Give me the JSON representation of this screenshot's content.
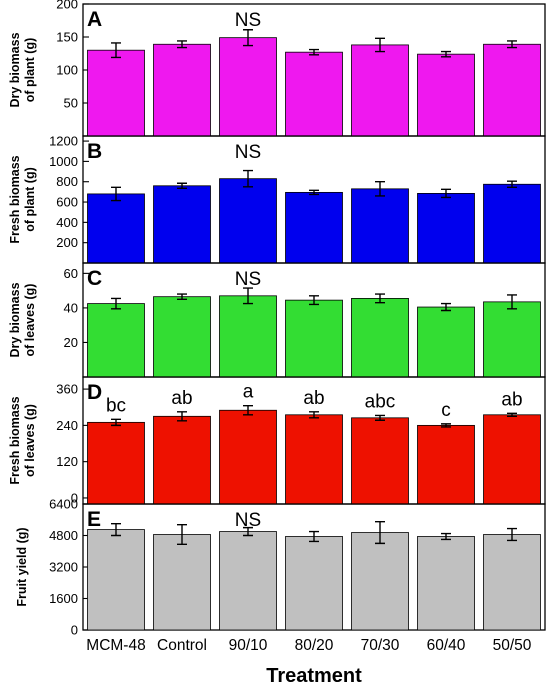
{
  "chart_data": [
    {
      "type": "bar",
      "panel": "A",
      "ylabel": [
        "Dry biomass",
        "of plant (g)"
      ],
      "annotation": "NS",
      "ylim": [
        0,
        200
      ],
      "yticks": [
        50,
        100,
        150,
        200
      ],
      "color": "#ef18ef",
      "categories": [
        "MCM-48",
        "Control",
        "90/10",
        "80/20",
        "70/30",
        "60/40",
        "50/50"
      ],
      "values": [
        130,
        139,
        149,
        127,
        138,
        124,
        139
      ],
      "errors": [
        11,
        5,
        12,
        4,
        10,
        4,
        5
      ]
    },
    {
      "type": "bar",
      "panel": "B",
      "ylabel": [
        "Fresh biomass",
        "of plant (g)"
      ],
      "annotation": "NS",
      "ylim": [
        0,
        1250
      ],
      "yticks": [
        200,
        400,
        600,
        800,
        1000,
        1200
      ],
      "color": "#0000ee",
      "categories": [
        "MCM-48",
        "Control",
        "90/10",
        "80/20",
        "70/30",
        "60/40",
        "50/50"
      ],
      "values": [
        680,
        760,
        830,
        695,
        730,
        685,
        775
      ],
      "errors": [
        65,
        25,
        80,
        20,
        70,
        40,
        30
      ]
    },
    {
      "type": "bar",
      "panel": "C",
      "ylabel": [
        "Dry biomass",
        "of leaves (g)"
      ],
      "annotation": "NS",
      "ylim": [
        0,
        66
      ],
      "yticks": [
        20,
        40,
        60
      ],
      "color": "#33dd33",
      "categories": [
        "MCM-48",
        "Control",
        "90/10",
        "80/20",
        "70/30",
        "60/40",
        "50/50"
      ],
      "values": [
        42.5,
        46.5,
        47,
        44.5,
        45.5,
        40.5,
        43.5
      ],
      "errors": [
        3,
        1.5,
        4.5,
        2.5,
        2.5,
        2,
        4
      ]
    },
    {
      "type": "bar",
      "panel": "D",
      "ylabel": [
        "Fresh biomass",
        "of leaves (g)"
      ],
      "annotation": "",
      "ylim": [
        -20,
        400
      ],
      "yticks": [
        0,
        120,
        240,
        360
      ],
      "color": "#ee1100",
      "categories": [
        "MCM-48",
        "Control",
        "90/10",
        "80/20",
        "70/30",
        "60/40",
        "50/50"
      ],
      "values": [
        250,
        270,
        290,
        275,
        265,
        240,
        275
      ],
      "errors": [
        10,
        15,
        15,
        10,
        8,
        5,
        5
      ],
      "letters": [
        "bc",
        "ab",
        "a",
        "ab",
        "abc",
        "c",
        "ab"
      ]
    },
    {
      "type": "bar",
      "panel": "E",
      "ylabel": [
        "Fruit yield (g)"
      ],
      "annotation": "NS",
      "ylim": [
        0,
        6400
      ],
      "yticks": [
        0,
        1600,
        3200,
        4800,
        6400
      ],
      "color": "#c0c0c0",
      "categories": [
        "MCM-48",
        "Control",
        "90/10",
        "80/20",
        "70/30",
        "60/40",
        "50/50"
      ],
      "values": [
        5100,
        4850,
        5000,
        4750,
        4950,
        4750,
        4850
      ],
      "errors": [
        300,
        500,
        200,
        250,
        550,
        150,
        300
      ]
    }
  ],
  "xlabel": "Treatment"
}
